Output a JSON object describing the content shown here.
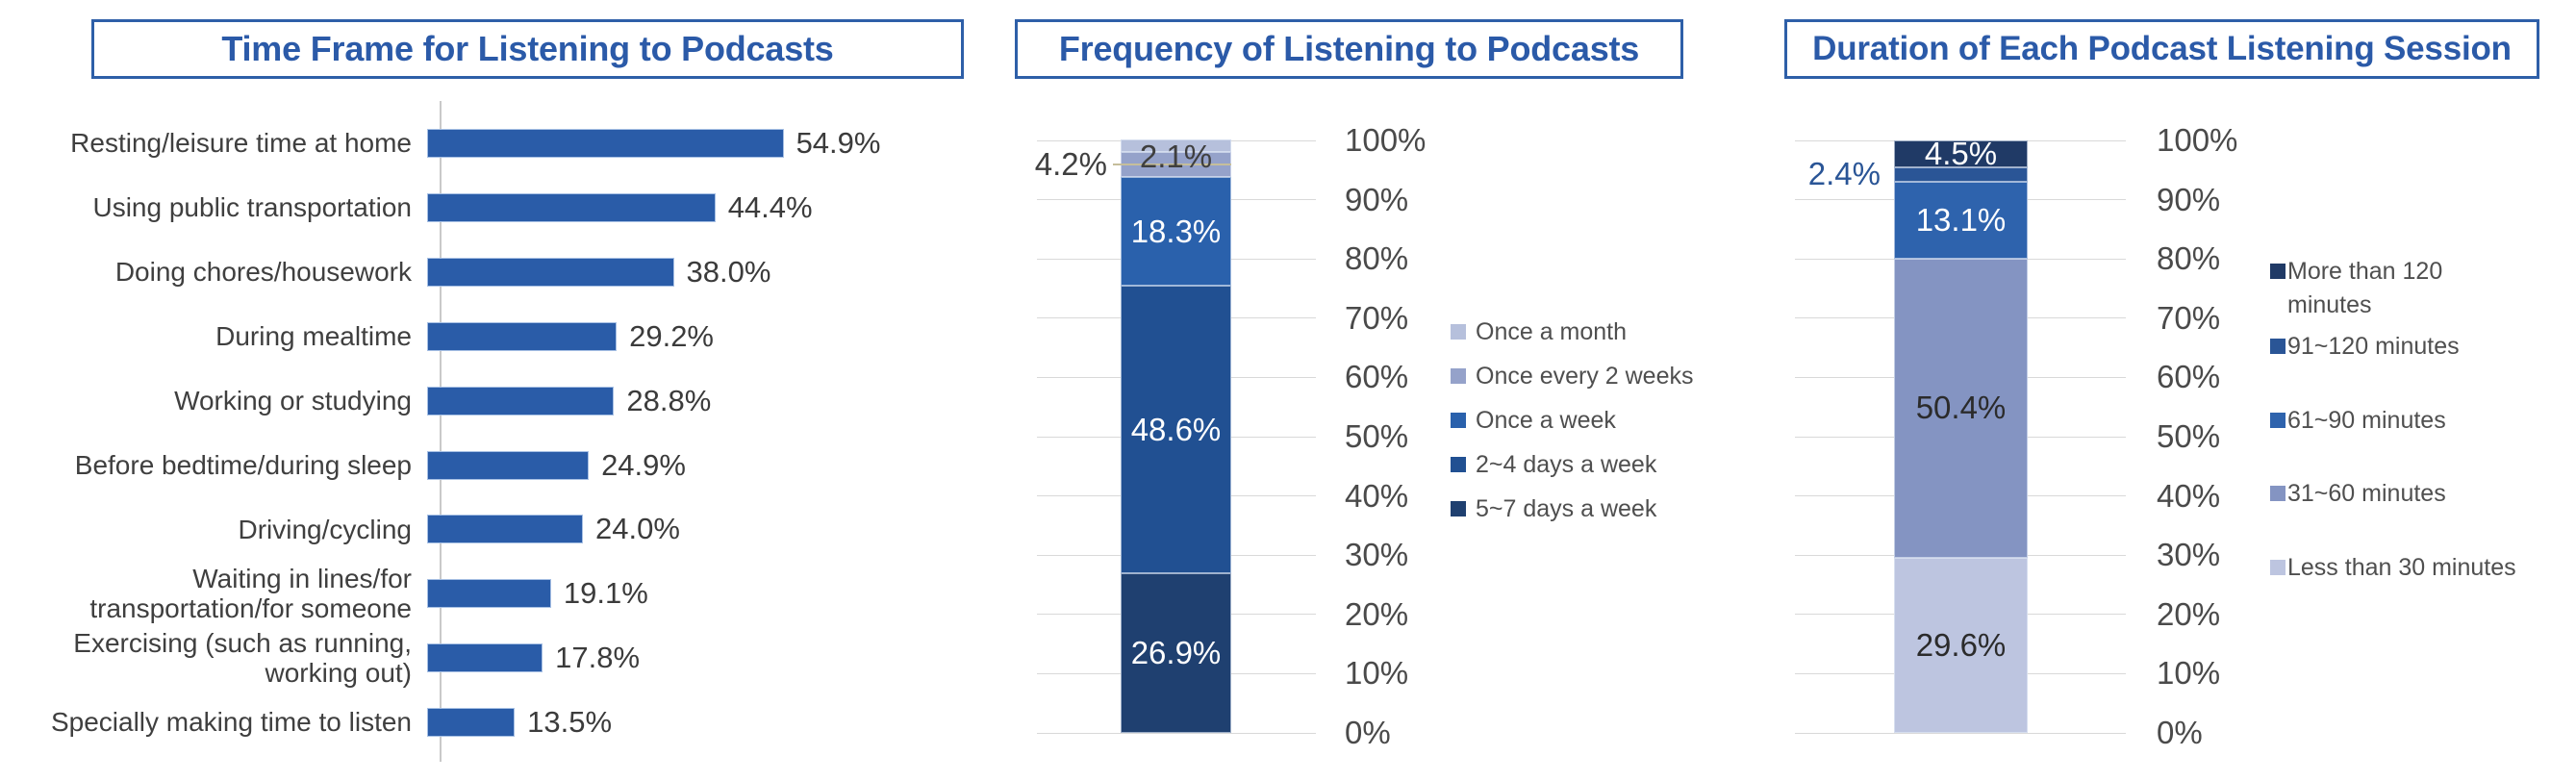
{
  "page": {
    "background": "#FFFFFF"
  },
  "styles": {
    "title_text_color": "#2B5AA8",
    "title_border_color": "#2E5FA8",
    "axis_tick_color": "#4A4A4A",
    "category_label_color": "#3F3F3F",
    "value_label_color": "#3B3B3B",
    "grid_color": "#D9D9D9",
    "axis_line_color": "#C9C9C9",
    "leader_line_color": "#C6BE9B"
  },
  "chart_data": [
    {
      "type": "bar",
      "orientation": "horizontal",
      "title": "Time Frame for Listening to Podcasts",
      "categories": [
        "Resting/leisure time at home",
        "Using public transportation",
        "Doing chores/housework",
        "During mealtime",
        "Working or studying",
        "Before bedtime/during sleep",
        "Driving/cycling",
        "Waiting in lines/for transportation/for someone",
        "Exercising (such as running, working out)",
        "Specially making time to listen"
      ],
      "values": [
        54.9,
        44.4,
        38.0,
        29.2,
        28.8,
        24.9,
        24.0,
        19.1,
        17.8,
        13.5
      ],
      "value_labels": [
        "54.9%",
        "44.4%",
        "38.0%",
        "29.2%",
        "28.8%",
        "24.9%",
        "24.0%",
        "19.1%",
        "17.8%",
        "13.5%"
      ],
      "bar_color": "#2A5CA8",
      "xlim": [
        0,
        100
      ],
      "grid": false,
      "value_label_position": "end-of-bar"
    },
    {
      "type": "stacked-bar",
      "title": "Frequency of Listening to Podcasts",
      "ylim": [
        0,
        100
      ],
      "yticks": [
        "100%",
        "90%",
        "80%",
        "70%",
        "60%",
        "50%",
        "40%",
        "30%",
        "20%",
        "10%",
        "0%"
      ],
      "grid": true,
      "axis_side": "right",
      "legend_position": "right",
      "segments_bottom_to_top": [
        {
          "name": "5~7 days a week",
          "value": 26.9,
          "label": "26.9%",
          "color": "#1F4070",
          "label_placement": "inside",
          "label_color": "#FFFFFF"
        },
        {
          "name": "2~4 days a week",
          "value": 48.6,
          "label": "48.6%",
          "color": "#215092",
          "label_placement": "inside",
          "label_color": "#FFFFFF"
        },
        {
          "name": "Once a week",
          "value": 18.3,
          "label": "18.3%",
          "color": "#2A61AC",
          "label_placement": "inside",
          "label_color": "#FFFFFF"
        },
        {
          "name": "Once every 2 weeks",
          "value": 4.2,
          "label": "4.2%",
          "color": "#95A2CA",
          "label_placement": "outside-left",
          "label_color": "#3F3F3F",
          "leader_line": true
        },
        {
          "name": "Once a month",
          "value": 2.1,
          "label": "2.1%",
          "color": "#B6C0DC",
          "label_placement": "above-inside",
          "label_color": "#3F3F3F"
        }
      ],
      "legend": [
        {
          "label": "Once a month",
          "color": "#B6C0DC"
        },
        {
          "label": "Once every 2 weeks",
          "color": "#95A2CA"
        },
        {
          "label": "Once a week",
          "color": "#2A61AC"
        },
        {
          "label": "2~4 days a week",
          "color": "#215092"
        },
        {
          "label": "5~7 days a week",
          "color": "#1F4070"
        }
      ]
    },
    {
      "type": "stacked-bar",
      "title": "Duration of Each Podcast Listening Session",
      "ylim": [
        0,
        100
      ],
      "yticks": [
        "100%",
        "90%",
        "80%",
        "70%",
        "60%",
        "50%",
        "40%",
        "30%",
        "20%",
        "10%",
        "0%"
      ],
      "grid": true,
      "axis_side": "right",
      "legend_position": "right",
      "segments_bottom_to_top": [
        {
          "name": "Less than 30 minutes",
          "value": 29.6,
          "label": "29.6%",
          "color": "#BDC5E0",
          "label_placement": "inside",
          "label_color": "#2B2B2B"
        },
        {
          "name": "31~60 minutes",
          "value": 50.4,
          "label": "50.4%",
          "color": "#8494C2",
          "label_placement": "inside",
          "label_color": "#2B2B2B"
        },
        {
          "name": "61~90 minutes",
          "value": 13.1,
          "label": "13.1%",
          "color": "#2E63AD",
          "label_placement": "inside",
          "label_color": "#FFFFFF"
        },
        {
          "name": "91~120 minutes",
          "value": 2.4,
          "label": "2.4%",
          "color": "#2A5596",
          "label_placement": "outside-left",
          "label_color": "#2A5596"
        },
        {
          "name": "More than 120 minutes",
          "value": 4.5,
          "label": "4.5%",
          "color": "#203A66",
          "label_placement": "inside",
          "label_color": "#FFFFFF"
        }
      ],
      "legend": [
        {
          "label": "More than 120 minutes",
          "color": "#203A66"
        },
        {
          "label": "91~120 minutes",
          "color": "#2A5596"
        },
        {
          "label": "61~90 minutes",
          "color": "#2E63AD"
        },
        {
          "label": "31~60 minutes",
          "color": "#8494C2"
        },
        {
          "label": "Less than 30 minutes",
          "color": "#BDC5E0"
        }
      ]
    }
  ]
}
